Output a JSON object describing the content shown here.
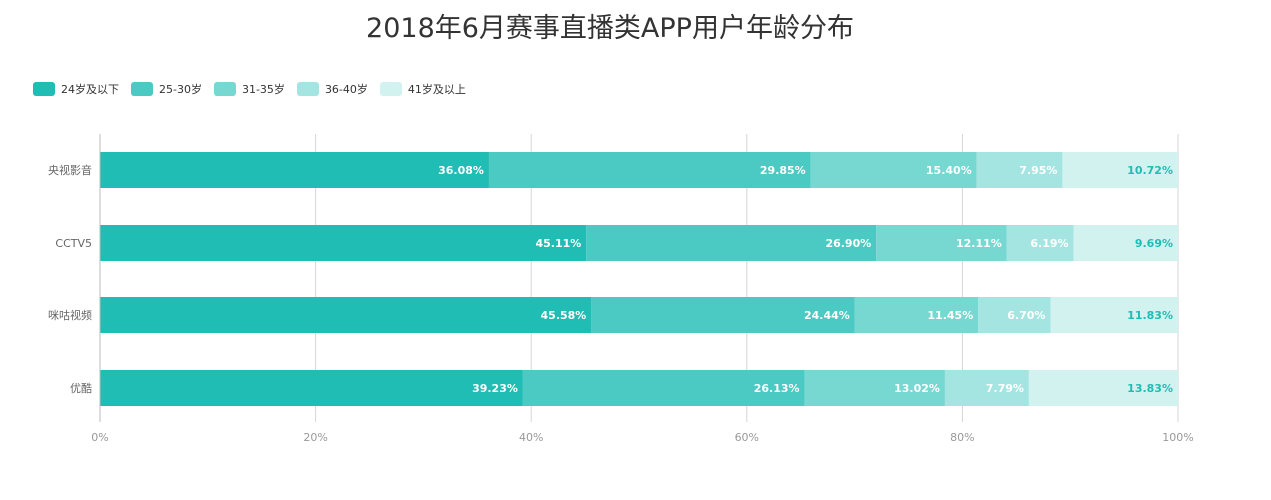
{
  "chart_data": {
    "type": "bar",
    "orientation": "horizontal",
    "stacked": true,
    "title": "2018年6月赛事直播类APP用户年龄分布",
    "categories": [
      "央视影音",
      "CCTV5",
      "咪咕视频",
      "优酷"
    ],
    "series": [
      {
        "name": "24岁及以下",
        "color": "#1fbdb3",
        "values": [
          36.08,
          45.11,
          45.58,
          39.23
        ],
        "labels": [
          "36.08%",
          "45.11%",
          "45.58%",
          "39.23%"
        ],
        "label_color": "#ffffff"
      },
      {
        "name": "25-30岁",
        "color": "#4acac3",
        "values": [
          29.85,
          26.9,
          24.44,
          26.13
        ],
        "labels": [
          "29.85%",
          "26.90%",
          "24.44%",
          "26.13%"
        ],
        "label_color": "#ffffff"
      },
      {
        "name": "31-35岁",
        "color": "#77d8d1",
        "values": [
          15.4,
          12.11,
          11.45,
          13.02
        ],
        "labels": [
          "15.40%",
          "12.11%",
          "11.45%",
          "13.02%"
        ],
        "label_color": "#ffffff"
      },
      {
        "name": "36-40岁",
        "color": "#a5e5e1",
        "values": [
          7.95,
          6.19,
          6.7,
          7.79
        ],
        "labels": [
          "7.95%",
          "6.19%",
          "6.70%",
          "7.79%"
        ],
        "label_color": "#ffffff"
      },
      {
        "name": "41岁及以上",
        "color": "#d2f2f0",
        "values": [
          10.72,
          9.69,
          11.83,
          13.83
        ],
        "labels": [
          "10.72%",
          "9.69%",
          "11.83%",
          "13.83%"
        ],
        "label_color": "#1fbdb3"
      }
    ],
    "x_ticks": [
      "0%",
      "20%",
      "40%",
      "60%",
      "80%",
      "100%"
    ],
    "xlim": [
      0,
      100
    ],
    "grid": true,
    "legend_position": "top-left"
  }
}
